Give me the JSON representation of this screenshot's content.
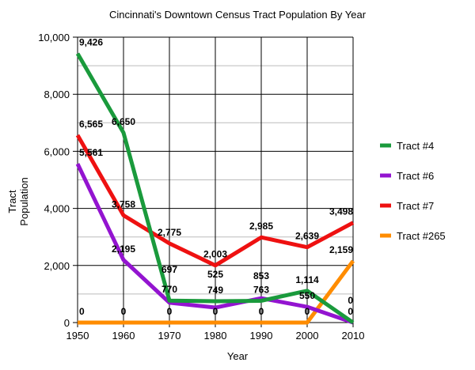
{
  "chart_data": {
    "type": "line",
    "title": "Cincinnati's Downtown Census Tract Population By Year",
    "xlabel": "Year",
    "ylabel": "Tract Population",
    "ylabel_lines": [
      "Tract",
      "Population"
    ],
    "x": [
      1950,
      1960,
      1970,
      1980,
      1990,
      2000,
      2010
    ],
    "x_tick_labels": [
      "1950",
      "1960",
      "1970",
      "1980",
      "1990",
      "2000",
      "2010"
    ],
    "ylim": [
      0,
      10000
    ],
    "y_ticks": [
      0,
      2000,
      4000,
      6000,
      8000,
      10000
    ],
    "y_tick_labels": [
      "0",
      "2,000",
      "4,000",
      "6,000",
      "8,000",
      "10,000"
    ],
    "grid": true,
    "legend_position": "right",
    "series": [
      {
        "name": "Tract #4",
        "color": "#1a9a3c",
        "values": [
          9426,
          6650,
          770,
          749,
          763,
          1114,
          0
        ],
        "labels": [
          "9,426",
          "6,650",
          "770",
          "749",
          "763",
          "1,114",
          "0"
        ]
      },
      {
        "name": "Tract #6",
        "color": "#9314d0",
        "values": [
          5561,
          2195,
          697,
          525,
          853,
          550,
          0
        ],
        "labels": [
          "5,561",
          "2,195",
          "697",
          "525",
          "853",
          "550",
          "0"
        ]
      },
      {
        "name": "Tract #7",
        "color": "#ee1111",
        "values": [
          6565,
          3758,
          2775,
          2003,
          2985,
          2639,
          3498
        ],
        "labels": [
          "6,565",
          "3,758",
          "2,775",
          "2,003",
          "2,985",
          "2,639",
          "3,498"
        ]
      },
      {
        "name": "Tract #265",
        "color": "#ff8c00",
        "values": [
          0,
          0,
          0,
          0,
          0,
          0,
          2159
        ],
        "labels": [
          "0",
          "0",
          "0",
          "0",
          "0",
          "0",
          "2,159"
        ]
      }
    ]
  }
}
